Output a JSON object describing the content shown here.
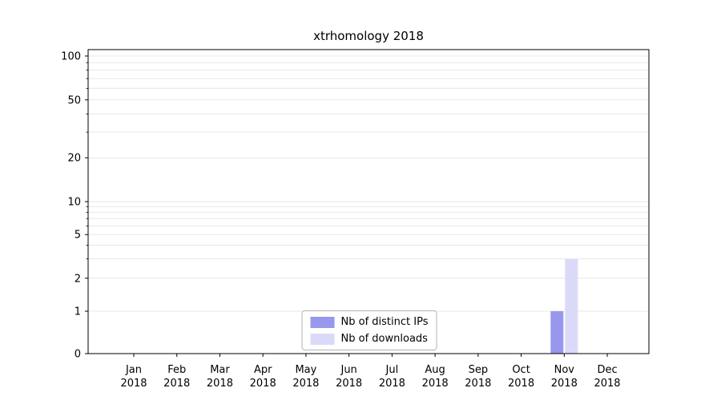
{
  "chart_data": {
    "type": "bar",
    "title": "xtrhomology 2018",
    "categories": [
      "Jan",
      "Feb",
      "Mar",
      "Apr",
      "May",
      "Jun",
      "Jul",
      "Aug",
      "Sep",
      "Oct",
      "Nov",
      "Dec"
    ],
    "category_year": "2018",
    "series": [
      {
        "name": "Nb of distinct IPs",
        "color": "#9797ed",
        "values": [
          0,
          0,
          0,
          0,
          0,
          0,
          0,
          0,
          0,
          0,
          1,
          0
        ]
      },
      {
        "name": "Nb of downloads",
        "color": "#dadaf8",
        "values": [
          0,
          0,
          0,
          0,
          0,
          0,
          0,
          0,
          0,
          0,
          3,
          0
        ]
      }
    ],
    "yscale": "symlog",
    "yticks": [
      0,
      1,
      2,
      5,
      10,
      20,
      50,
      100
    ],
    "ylim": [
      0,
      110
    ],
    "grid": "horizontal-minor-log",
    "legend_position": "bottom-center",
    "colors": {
      "axis": "#000000",
      "gridline": "#e7e7e7",
      "legend_border": "#b3b3b3"
    }
  }
}
